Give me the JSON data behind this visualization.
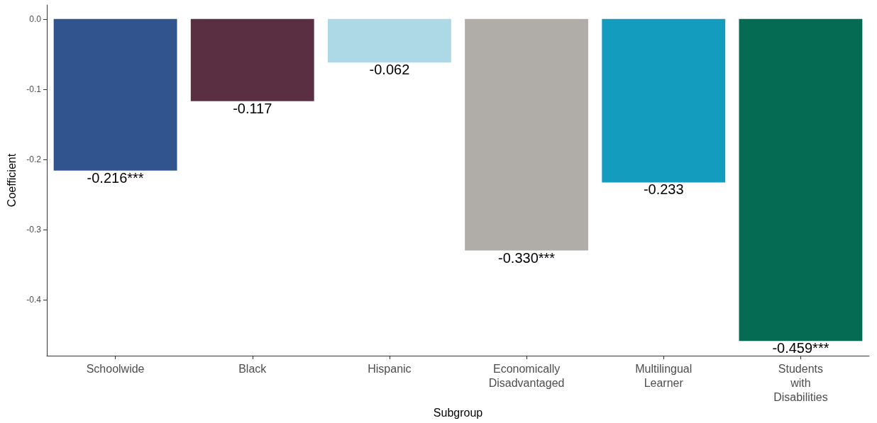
{
  "chart_data": {
    "type": "bar",
    "xlabel": "Subgroup",
    "ylabel": "Coefficient",
    "categories": [
      "Schoolwide",
      "Black",
      "Hispanic",
      "Economically Disadvantaged",
      "Multilingual Learner",
      "Students with Disabilities"
    ],
    "values": [
      -0.216,
      -0.117,
      -0.062,
      -0.33,
      -0.233,
      -0.459
    ],
    "colors": [
      "#31548f",
      "#5a2f42",
      "#add8e6",
      "#b0aca8",
      "#139cbd",
      "#056b52"
    ],
    "value_labels": [
      "-0.216***",
      "-0.117",
      "-0.062",
      "-0.330***",
      "-0.233",
      "-0.459***"
    ],
    "ylim": [
      -0.48,
      0.02
    ],
    "yticks": [
      {
        "value": 0,
        "label": "0.0"
      },
      -0.1,
      -0.2,
      -0.3,
      -0.4
    ],
    "grid": false
  }
}
